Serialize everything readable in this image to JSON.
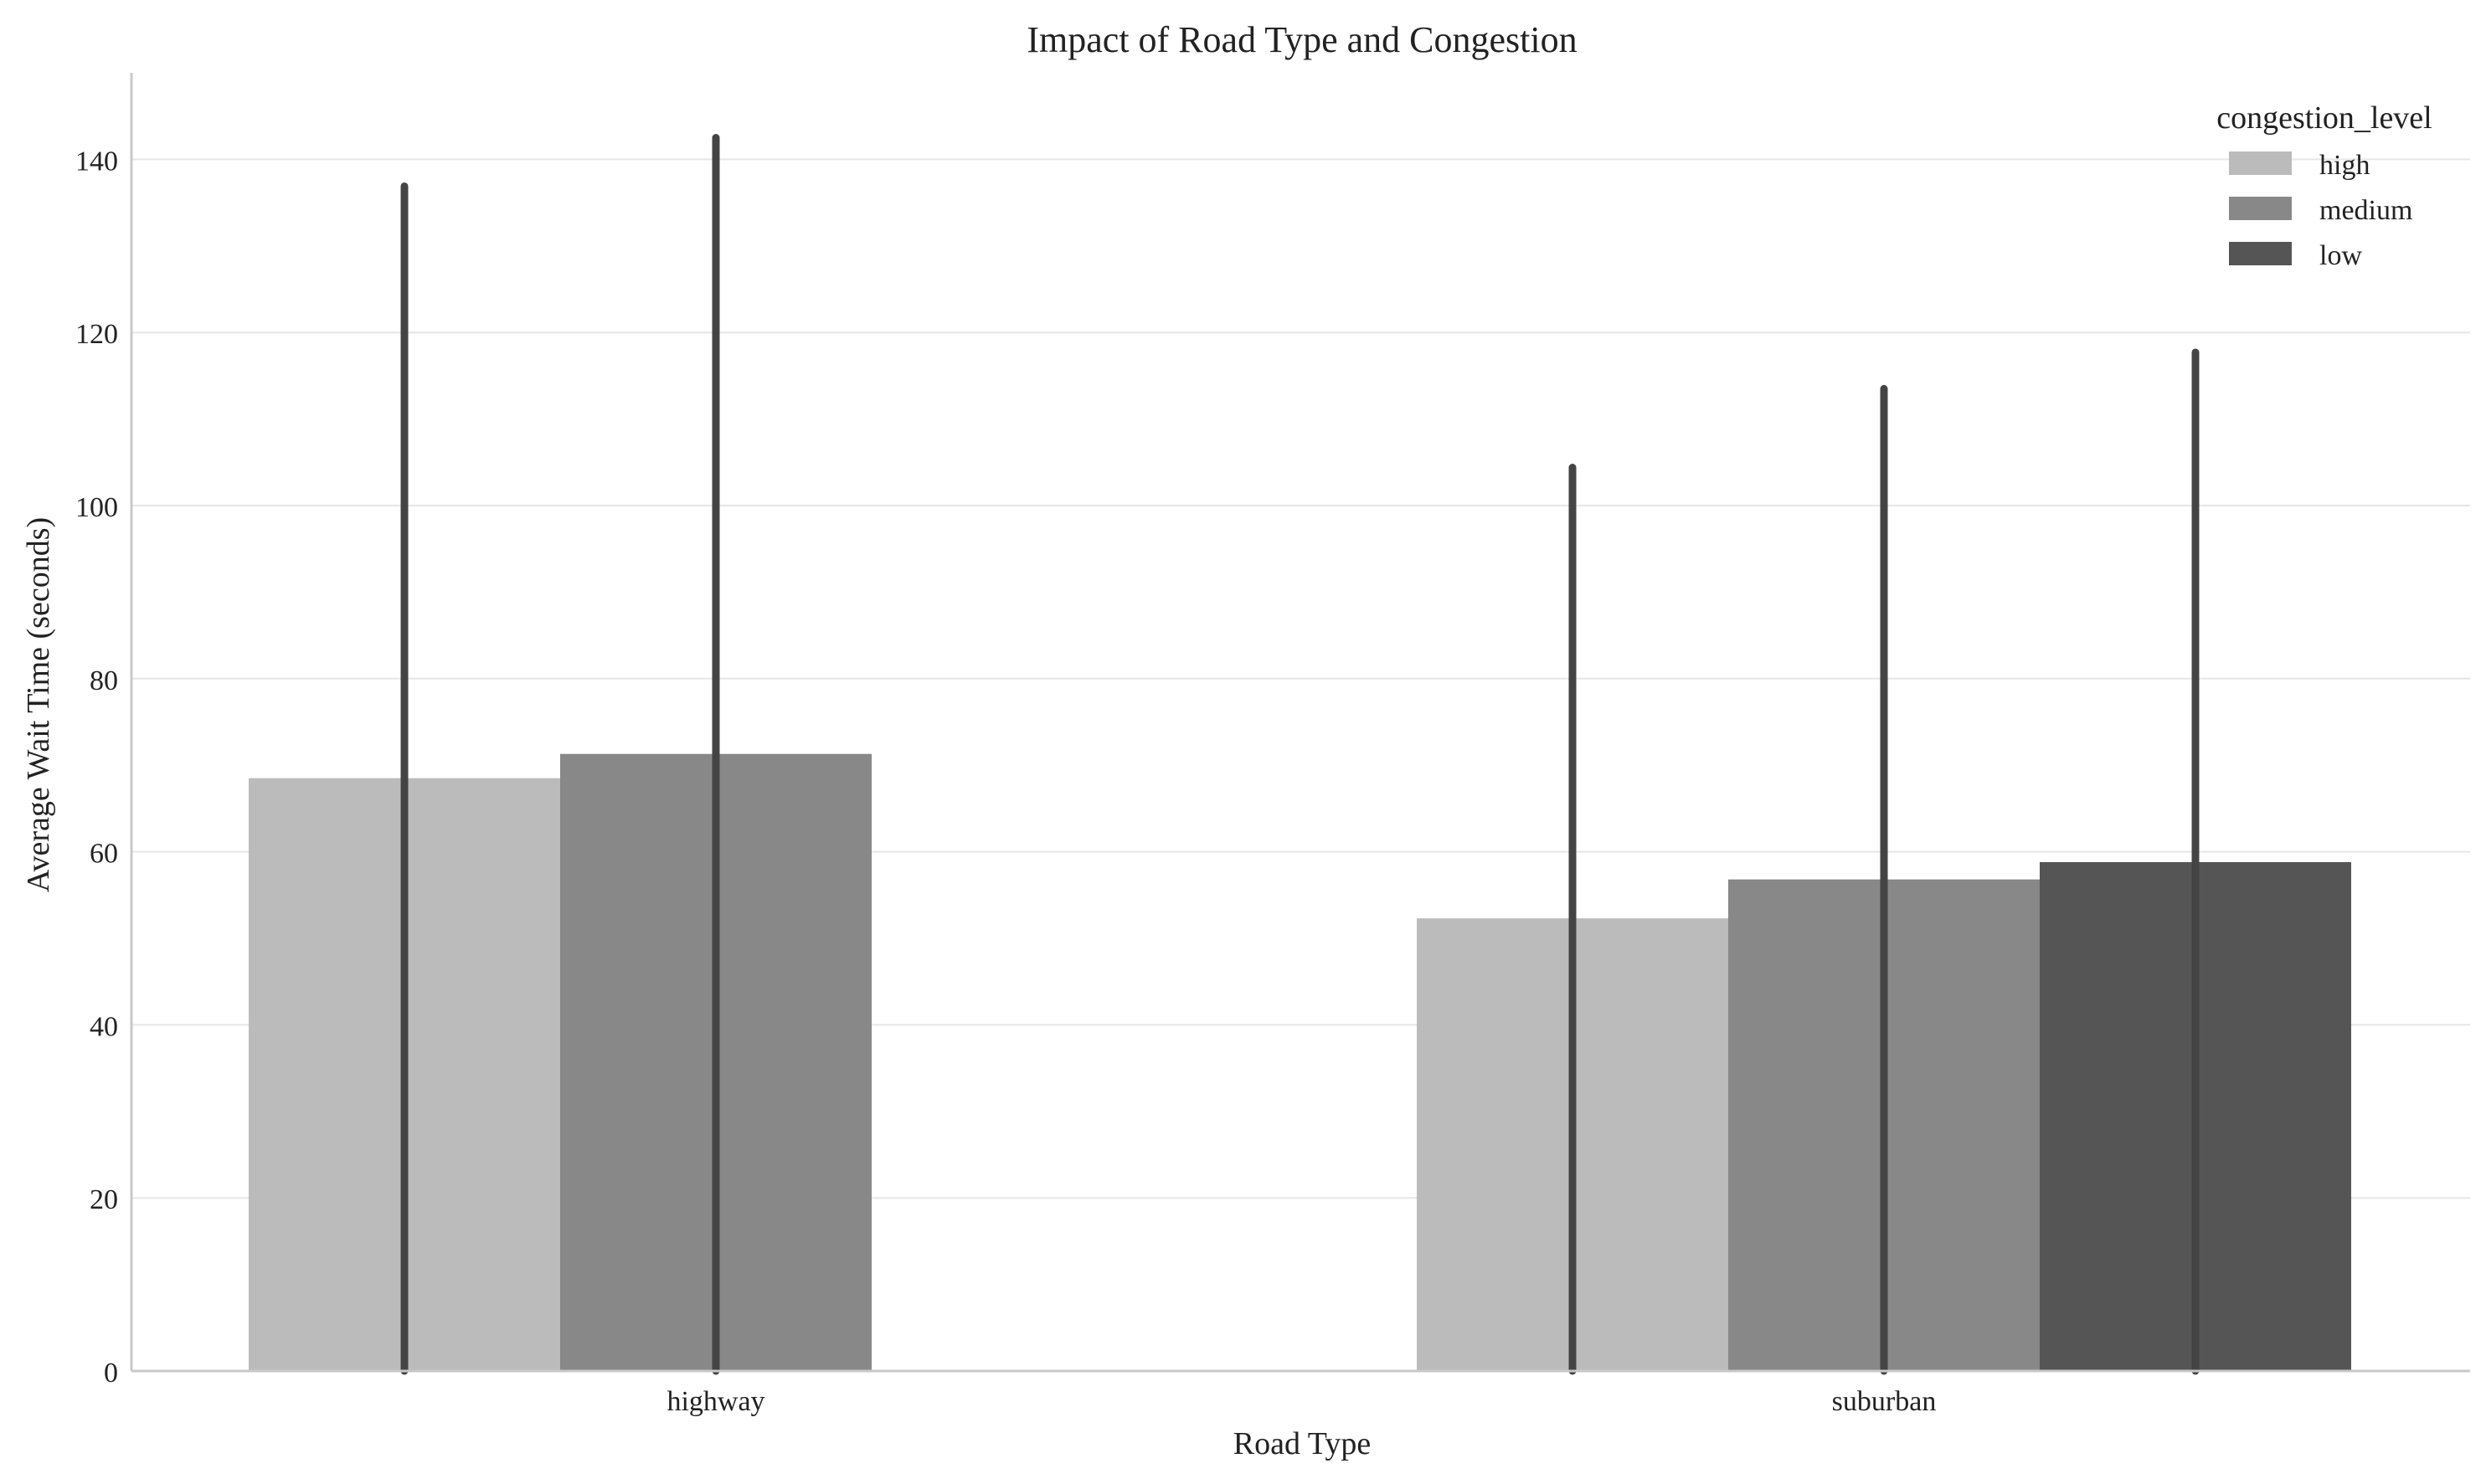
{
  "chart_data": {
    "type": "bar",
    "title": "Impact of Road Type and Congestion",
    "xlabel": "Road Type",
    "ylabel": "Average Wait Time (seconds)",
    "categories": [
      "highway",
      "suburban"
    ],
    "ylim": [
      0,
      150
    ],
    "yticks": [
      0,
      20,
      40,
      60,
      80,
      100,
      120,
      140
    ],
    "grid": true,
    "legend": {
      "title": "congestion_level",
      "placement": "top-right"
    },
    "series": [
      {
        "name": "high",
        "color": "#bbbbbb",
        "values": [
          68.5,
          52.3
        ],
        "error_high": [
          136.9,
          104.4
        ]
      },
      {
        "name": "medium",
        "color": "#888888",
        "values": [
          71.3,
          56.8
        ],
        "error_high": [
          142.5,
          113.5
        ]
      },
      {
        "name": "low",
        "color": "#555555",
        "values": [
          null,
          58.8
        ],
        "error_high": [
          null,
          117.7
        ]
      }
    ],
    "error_bar_color": "#444444"
  }
}
